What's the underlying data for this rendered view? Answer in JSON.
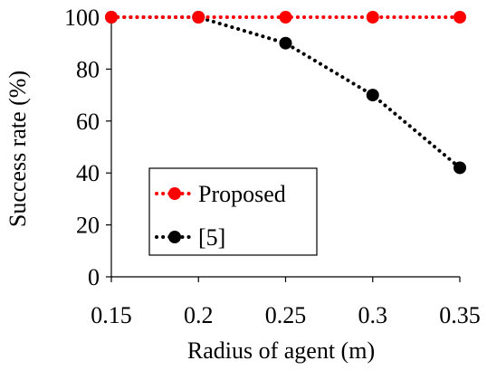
{
  "chart_data": {
    "type": "line",
    "x": [
      0.15,
      0.2,
      0.25,
      0.3,
      0.35
    ],
    "x_tick_labels": [
      "0.15",
      "0.2",
      "0.25",
      "0.3",
      "0.35"
    ],
    "y_tick_labels": [
      "0",
      "20",
      "40",
      "60",
      "80",
      "100"
    ],
    "y_ticks": [
      0,
      20,
      40,
      60,
      80,
      100
    ],
    "series": [
      {
        "name": "Proposed",
        "values": [
          100,
          100,
          100,
          100,
          100
        ],
        "color": "#ff0000",
        "line_style": "dotted"
      },
      {
        "name": "[5]",
        "values": [
          100,
          100,
          90,
          70,
          42
        ],
        "color": "#000000",
        "line_style": "dotted"
      }
    ],
    "xlabel": "Radius of agent (m)",
    "ylabel": "Success rate (%)",
    "xlim": [
      0.15,
      0.35
    ],
    "ylim": [
      0,
      100
    ],
    "grid": false,
    "legend_position": "lower-left"
  }
}
